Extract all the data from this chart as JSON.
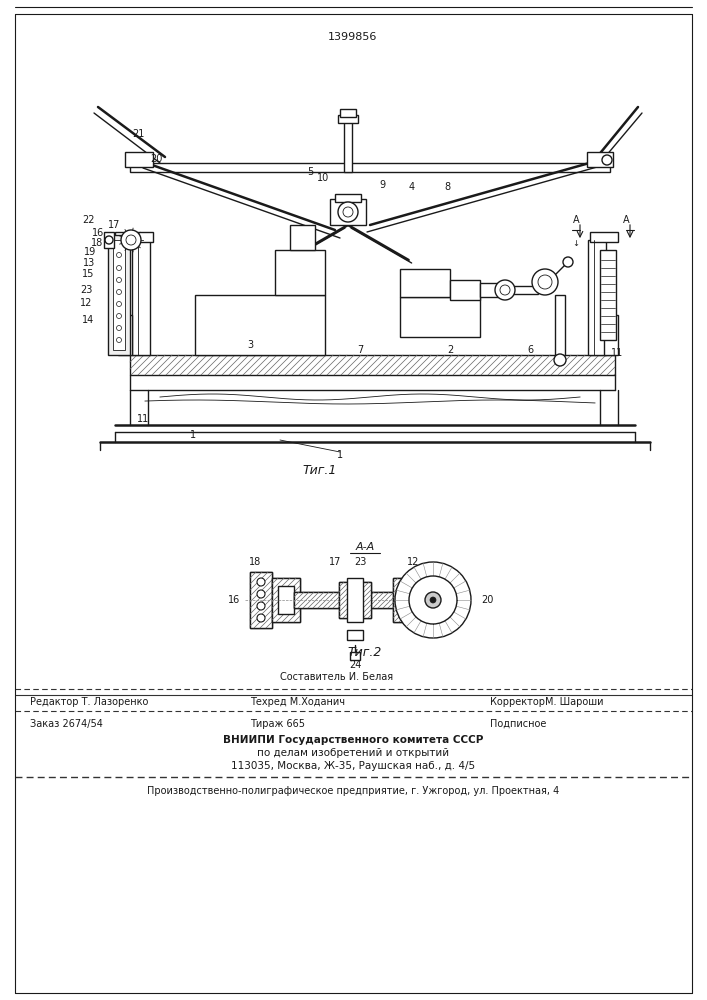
{
  "patent_number": "1399856",
  "bg_color": "#ffffff",
  "line_color": "#1a1a1a",
  "fig1_caption": "Τиг.1",
  "fig2_caption": "Τиг.2",
  "fig2_section": "A-A",
  "footer_row1_left": "Редактор Т. Лазоренко",
  "footer_row1_center_top": "Составитель И. Белая",
  "footer_row1_center": "Техред М.Ходанич",
  "footer_row1_right": "КорректорМ. Шароши",
  "footer_row2_left": "Заказ 2674/54",
  "footer_row2_center": "Тираж 665",
  "footer_row2_right": "Подписное",
  "footer_vnipi1": "ВНИИПИ Государственного комитета СССР",
  "footer_vnipi2": "по делам изобретений и открытий",
  "footer_vnipi3": "113035, Москва, Ж-35, Раушская наб., д. 4/5",
  "footer_last": "Производственно-полиграфическое предприятие, г. Ужгород, ул. Проектная, 4"
}
